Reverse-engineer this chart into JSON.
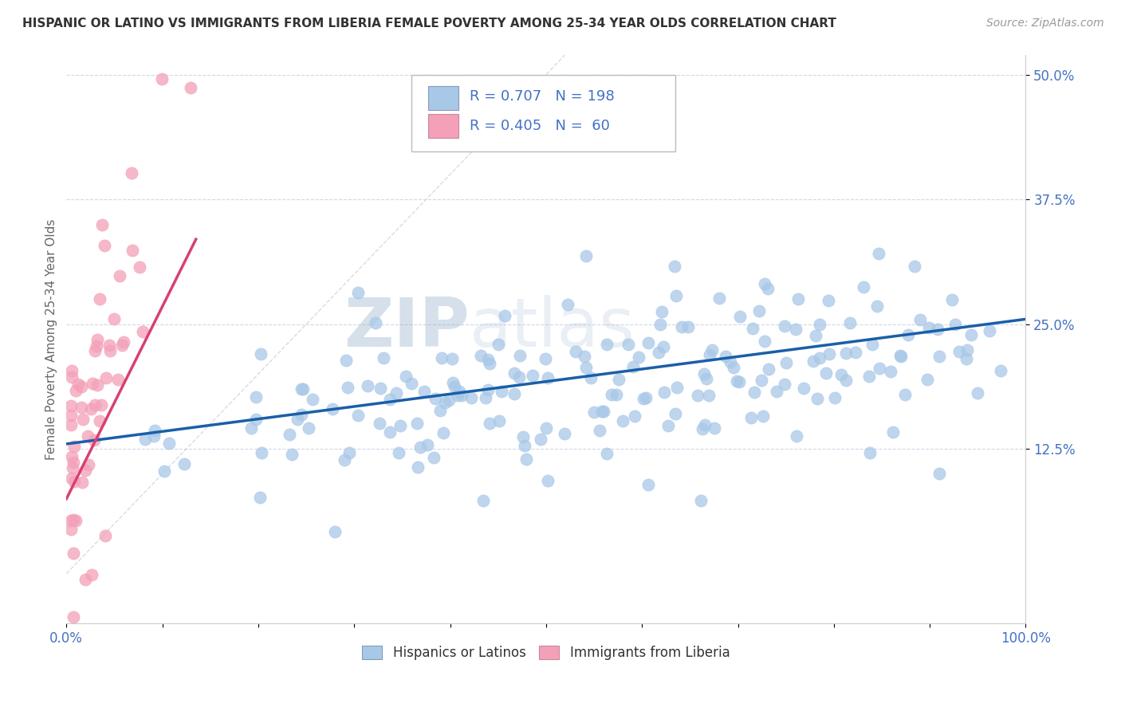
{
  "title": "HISPANIC OR LATINO VS IMMIGRANTS FROM LIBERIA FEMALE POVERTY AMONG 25-34 YEAR OLDS CORRELATION CHART",
  "source": "Source: ZipAtlas.com",
  "ylabel": "Female Poverty Among 25-34 Year Olds",
  "xlim": [
    0.0,
    1.0
  ],
  "ylim": [
    -0.05,
    0.52
  ],
  "xticks": [
    0.0,
    0.1,
    0.2,
    0.3,
    0.4,
    0.5,
    0.6,
    0.7,
    0.8,
    0.9,
    1.0
  ],
  "xticklabels": [
    "0.0%",
    "",
    "",
    "",
    "",
    "",
    "",
    "",
    "",
    "",
    "100.0%"
  ],
  "ytick_positions": [
    0.125,
    0.25,
    0.375,
    0.5
  ],
  "yticklabels": [
    "12.5%",
    "25.0%",
    "37.5%",
    "50.0%"
  ],
  "watermark_zip": "ZIP",
  "watermark_atlas": "atlas",
  "legend_R1": "0.707",
  "legend_N1": "198",
  "legend_R2": "0.405",
  "legend_N2": "60",
  "blue_color": "#a8c8e8",
  "pink_color": "#f4a0b8",
  "blue_line_color": "#1a5fa8",
  "pink_line_color": "#d84070",
  "diagonal_color": "#cccccc",
  "title_color": "#333333",
  "source_color": "#999999",
  "tick_color": "#4472c4",
  "legend_text_color": "#4472c4",
  "blue_scatter_seed": 123,
  "pink_scatter_seed": 456
}
